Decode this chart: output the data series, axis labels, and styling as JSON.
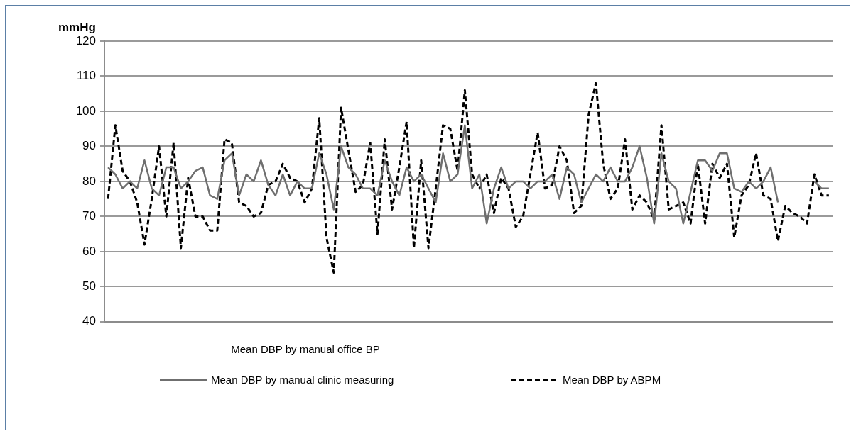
{
  "chart_data": {
    "type": "line",
    "ylabel": "mmHg",
    "xlabel": "Mean DBP by manual office BP",
    "categories": [
      null,
      null,
      null,
      null,
      null,
      null,
      null,
      null,
      null,
      null,
      null,
      null,
      null,
      null,
      null,
      null,
      null,
      null,
      null,
      null,
      null,
      null,
      null,
      null,
      null,
      null,
      null,
      null,
      null,
      null,
      null,
      null,
      null,
      null,
      null,
      null,
      null,
      null,
      null,
      null,
      null,
      null,
      null,
      null,
      null,
      null,
      null,
      null,
      null,
      null,
      null,
      null,
      null,
      null,
      null,
      null,
      null,
      null,
      null,
      null,
      null,
      null,
      null,
      null,
      null,
      null,
      null,
      null,
      null,
      null,
      null,
      null,
      null,
      null,
      null,
      null,
      null,
      null,
      null,
      null,
      null,
      null,
      null,
      null,
      null,
      null,
      null,
      null,
      null,
      null,
      null,
      null,
      null,
      null,
      null,
      null,
      null,
      null,
      null,
      null
    ],
    "series": [
      {
        "name": "Mean DBP by manual clinic measuring",
        "color": "#6f6f6f",
        "line_style": "solid",
        "values": [
          84,
          82,
          78,
          80,
          78,
          86,
          78,
          76,
          84,
          84,
          78,
          80,
          83,
          84,
          76,
          75,
          86,
          88,
          76,
          82,
          80,
          86,
          79,
          76,
          82,
          76,
          80,
          78,
          78,
          88,
          82,
          72,
          90,
          84,
          82,
          78,
          78,
          76,
          86,
          80,
          76,
          84,
          80,
          82,
          78,
          74,
          88,
          80,
          82,
          96,
          78,
          82,
          68,
          78,
          84,
          78,
          80,
          80,
          78,
          80,
          80,
          82,
          75,
          84,
          82,
          74,
          78,
          82,
          80,
          84,
          80,
          80,
          84,
          90,
          81,
          68,
          88,
          80,
          78,
          68,
          77,
          86,
          86,
          83,
          88,
          88,
          78,
          77,
          80,
          78,
          80,
          84,
          74,
          null,
          null,
          null,
          null,
          80,
          78,
          78
        ]
      },
      {
        "name": "Mean DBP by ABPM",
        "color": "#000000",
        "line_style": "dashed",
        "values": [
          75,
          96,
          83,
          80,
          74,
          62,
          75,
          90,
          70,
          91,
          61,
          81,
          70,
          70,
          66,
          66,
          92,
          91,
          74,
          73,
          70,
          71,
          79,
          80,
          85,
          81,
          80,
          74,
          78,
          98,
          64,
          54,
          101,
          89,
          77,
          79,
          91,
          65,
          92,
          72,
          84,
          97,
          61,
          86,
          61,
          78,
          96,
          95,
          83,
          106,
          82,
          78,
          82,
          71,
          81,
          78,
          67,
          70,
          82,
          94,
          78,
          79,
          90,
          86,
          71,
          73,
          99,
          108,
          85,
          75,
          78,
          92,
          72,
          76,
          74,
          69,
          96,
          72,
          73,
          74,
          68,
          85,
          68,
          85,
          81,
          85,
          64,
          76,
          79,
          88,
          76,
          75,
          63,
          73,
          71,
          70,
          68,
          82,
          76,
          76
        ]
      }
    ],
    "ylim": [
      40,
      120
    ],
    "yticks": [
      40,
      50,
      60,
      70,
      80,
      90,
      100,
      110,
      120
    ],
    "grid": "y",
    "legend": "bottom",
    "marker": "none"
  }
}
